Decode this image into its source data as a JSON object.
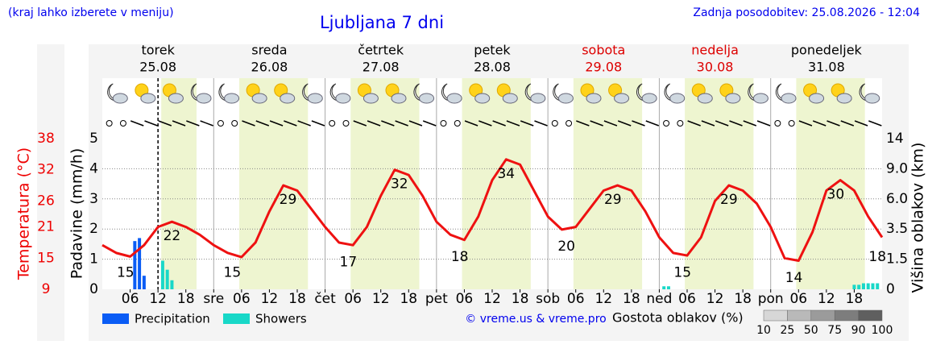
{
  "header": {
    "hint": "(kraj lahko izberete v meniju)",
    "updated": "Zadnja posodobitev: 25.08.2026 - 12:04"
  },
  "chart_data": {
    "type": "meteogram",
    "title": "Ljubljana 7 dni",
    "days": [
      {
        "name": "torek",
        "date": "25.08",
        "color": "#000000"
      },
      {
        "name": "sreda",
        "date": "26.08",
        "color": "#000000"
      },
      {
        "name": "četrtek",
        "date": "27.08",
        "color": "#000000"
      },
      {
        "name": "petek",
        "date": "28.08",
        "color": "#000000"
      },
      {
        "name": "sobota",
        "date": "29.08",
        "color": "#dd0000"
      },
      {
        "name": "nedelja",
        "date": "30.08",
        "color": "#dd0000"
      },
      {
        "name": "ponedeljek",
        "date": "31.08",
        "color": "#000000"
      }
    ],
    "xlim": [
      0,
      168
    ],
    "xticks": [
      {
        "value": 6,
        "label": "06"
      },
      {
        "value": 12,
        "label": "12"
      },
      {
        "value": 18,
        "label": "18"
      },
      {
        "value": 24,
        "label": "sre"
      },
      {
        "value": 30,
        "label": "06"
      },
      {
        "value": 36,
        "label": "12"
      },
      {
        "value": 42,
        "label": "18"
      },
      {
        "value": 48,
        "label": "čet"
      },
      {
        "value": 54,
        "label": "06"
      },
      {
        "value": 60,
        "label": "12"
      },
      {
        "value": 66,
        "label": "18"
      },
      {
        "value": 72,
        "label": "pet"
      },
      {
        "value": 78,
        "label": "06"
      },
      {
        "value": 84,
        "label": "12"
      },
      {
        "value": 90,
        "label": "18"
      },
      {
        "value": 96,
        "label": "sob"
      },
      {
        "value": 102,
        "label": "06"
      },
      {
        "value": 108,
        "label": "12"
      },
      {
        "value": 114,
        "label": "18"
      },
      {
        "value": 120,
        "label": "ned"
      },
      {
        "value": 126,
        "label": "06"
      },
      {
        "value": 132,
        "label": "12"
      },
      {
        "value": 138,
        "label": "18"
      },
      {
        "value": 144,
        "label": "pon"
      },
      {
        "value": 150,
        "label": "06"
      },
      {
        "value": 156,
        "label": "12"
      },
      {
        "value": 162,
        "label": "18"
      }
    ],
    "now": 12,
    "ylabel": "Padavine (mm/h)",
    "ylim": [
      0,
      5
    ],
    "yticks": [
      0,
      1,
      2,
      3,
      4,
      5
    ],
    "grid": true,
    "y2label": "Višina oblakov (km)",
    "y2ticks": [
      0,
      1.5,
      3.5,
      {
        "value": 6,
        "label": "6.0"
      },
      {
        "value": 9,
        "label": "9.0"
      },
      14
    ],
    "temp_label": "Temperatura (°C)",
    "temp_lim": [
      9,
      38
    ],
    "temp_ticks": [
      9,
      15,
      21,
      26,
      32,
      38
    ],
    "temperature": {
      "color": "#ee1111",
      "x": [
        0,
        3,
        6,
        9,
        12,
        15,
        18,
        21,
        24,
        27,
        30,
        33,
        36,
        39,
        42,
        45,
        48,
        51,
        54,
        57,
        60,
        63,
        66,
        69,
        72,
        75,
        78,
        81,
        84,
        87,
        90,
        93,
        96,
        99,
        102,
        105,
        108,
        111,
        114,
        117,
        120,
        123,
        126,
        129,
        132,
        135,
        138,
        141,
        144,
        147,
        150,
        153,
        156,
        159,
        162,
        165,
        168
      ],
      "values": [
        17.5,
        16,
        15.3,
        17.5,
        21,
        22,
        21,
        19.5,
        17.5,
        16,
        15.2,
        18,
        24,
        29,
        28,
        24.5,
        21,
        18,
        17.5,
        21,
        27,
        32,
        31,
        27,
        22,
        19.5,
        18.5,
        23,
        30,
        34,
        33,
        28,
        23,
        20.5,
        21,
        24.5,
        28,
        29,
        28,
        24,
        19,
        16,
        15.5,
        19,
        26,
        29,
        28,
        25.5,
        21,
        15,
        14.5,
        20,
        28,
        30,
        28,
        23,
        19
      ]
    },
    "temp_labels": [
      {
        "x": 5,
        "value": 15
      },
      {
        "x": 15,
        "value": 22
      },
      {
        "x": 28,
        "value": 15
      },
      {
        "x": 40,
        "value": 29
      },
      {
        "x": 53,
        "value": 17
      },
      {
        "x": 64,
        "value": 32
      },
      {
        "x": 77,
        "value": 18
      },
      {
        "x": 87,
        "value": 34
      },
      {
        "x": 100,
        "value": 20
      },
      {
        "x": 110,
        "value": 29
      },
      {
        "x": 125,
        "value": 15
      },
      {
        "x": 135,
        "value": 29
      },
      {
        "x": 149,
        "value": 14
      },
      {
        "x": 158,
        "value": 30
      },
      {
        "x": 167,
        "value": 18
      }
    ],
    "series": [
      {
        "name": "Precipitation",
        "color": "#0a5cf5",
        "x": [
          7,
          8,
          9
        ],
        "values": [
          1.6,
          1.7,
          0.45
        ]
      },
      {
        "name": "Showers",
        "color": "#18d8c8",
        "x": [
          13,
          14,
          15,
          121,
          122,
          162,
          163,
          164,
          165,
          166,
          167
        ],
        "values": [
          0.95,
          0.65,
          0.3,
          0.1,
          0.1,
          0.15,
          0.15,
          0.2,
          0.2,
          0.2,
          0.2
        ]
      }
    ],
    "cloud_legend": {
      "title": "Gostota oblakov (%)",
      "ticks": [
        10,
        25,
        50,
        75,
        90,
        100
      ]
    },
    "credit": "© vreme.us & vreme.pro"
  }
}
